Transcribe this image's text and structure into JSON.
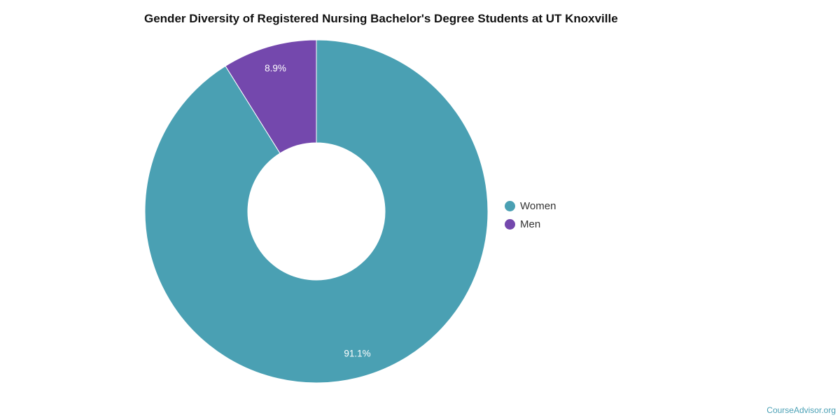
{
  "chart_data": {
    "type": "pie",
    "title": "Gender Diversity of Registered Nursing Bachelor's Degree Students at UT Knoxville",
    "donut": true,
    "categories": [
      "Women",
      "Men"
    ],
    "values": [
      91.1,
      8.9
    ],
    "data_labels": [
      "91.1%",
      "8.9%"
    ],
    "colors": [
      "#4aa0b3",
      "#7448ad"
    ],
    "legend": {
      "placement": "right",
      "entries": [
        "Women",
        "Men"
      ]
    }
  },
  "footer": {
    "source": "CourseAdvisor.org"
  }
}
